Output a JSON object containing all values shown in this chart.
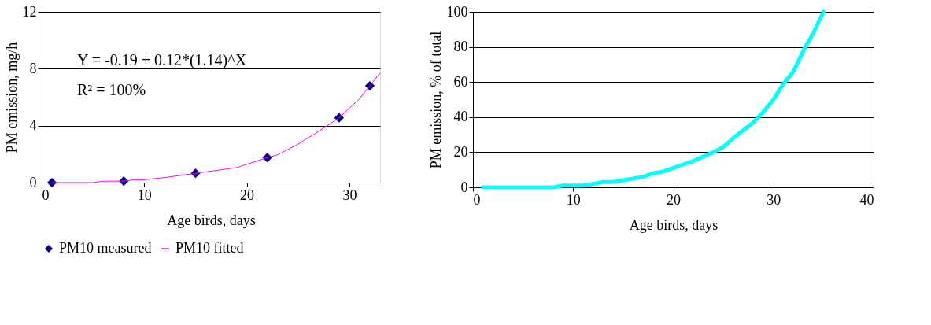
{
  "chart_data": [
    {
      "type": "line",
      "xlabel": "Age birds, days",
      "ylabel": "PM emission, mg/h",
      "xlim": [
        0,
        33
      ],
      "xticks": [
        0,
        10,
        20,
        30
      ],
      "ylim": [
        0,
        12
      ],
      "yticks": [
        0,
        4,
        8,
        12
      ],
      "grid": "y",
      "legend": "bottom",
      "annotations": [
        "Y = -0.19 + 0.12*(1.14)^X",
        "R² = 100%"
      ],
      "series": [
        {
          "name": "PM10 measured",
          "type": "scatter",
          "marker": "diamond",
          "color": "#000080",
          "x": [
            1,
            8,
            15,
            22,
            29,
            32
          ],
          "values": [
            0,
            0.1,
            0.65,
            1.75,
            4.55,
            6.8
          ]
        },
        {
          "name": "PM10 fitted",
          "color": "#ff00ff",
          "x": [
            1,
            5,
            6,
            8,
            9,
            10,
            12,
            15,
            19,
            22,
            23,
            25,
            27,
            29,
            31,
            32,
            33
          ],
          "values": [
            0,
            0,
            0.1,
            0.1,
            0.2,
            0.2,
            0.35,
            0.65,
            1.05,
            1.75,
            1.95,
            2.7,
            3.6,
            4.55,
            5.9,
            6.8,
            7.7
          ]
        }
      ]
    },
    {
      "type": "line",
      "xlabel": "Age birds, days",
      "ylabel": "PM emission, % of total",
      "xlim": [
        0,
        40
      ],
      "xticks": [
        0,
        10,
        20,
        30,
        40
      ],
      "ylim": [
        0,
        100
      ],
      "yticks": [
        0,
        20,
        40,
        60,
        80,
        100
      ],
      "grid": "y",
      "series": [
        {
          "color": "#00ffff",
          "x": [
            1,
            8,
            9,
            11,
            13,
            14,
            15,
            17,
            18,
            19,
            20,
            21,
            22,
            24,
            25,
            26,
            28,
            29,
            30,
            31,
            32,
            33,
            34,
            35
          ],
          "values": [
            0,
            0,
            1,
            1,
            3,
            3,
            4,
            6,
            8,
            9,
            11,
            13,
            15,
            20,
            23,
            28,
            37,
            43,
            50,
            59,
            66,
            78,
            88,
            100
          ]
        }
      ]
    }
  ]
}
